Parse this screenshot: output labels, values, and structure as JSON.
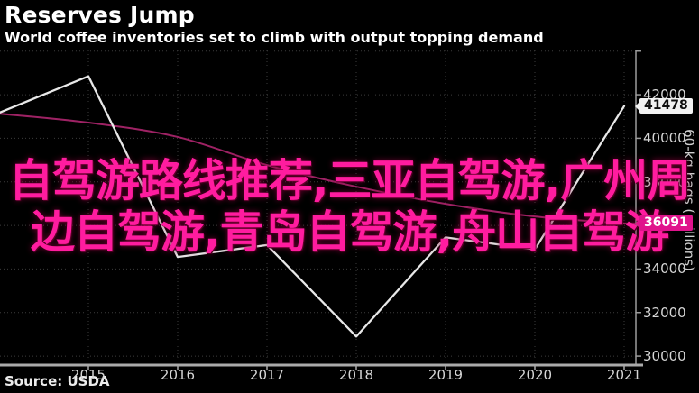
{
  "header": {
    "title": "Reserves Jump",
    "subtitle": "World coffee inventories set to climb with output topping demand"
  },
  "source": {
    "label": "Source: USDA"
  },
  "watermark": {
    "line1": "自驾游路线推荐,三亚自驾游,广州周",
    "line2": "边自驾游,青岛自驾游,舟山自驾游",
    "color": "#ff1c9f"
  },
  "chart_data": {
    "type": "line",
    "title": "Reserves Jump",
    "subtitle": "World coffee inventories set to climb with output topping demand",
    "ylabel": "60-kg bags (millions)",
    "x": [
      2014,
      2015,
      2016,
      2017,
      2018,
      2019,
      2020,
      2021
    ],
    "xticks": [
      2015,
      2016,
      2017,
      2018,
      2019,
      2020,
      2021
    ],
    "yticks": [
      30000,
      32000,
      34000,
      36000,
      38000,
      40000,
      42000
    ],
    "ygrid": [
      30000,
      32000,
      34000,
      36000,
      38000,
      40000,
      42000,
      44000
    ],
    "ylim": [
      29590,
      44030
    ],
    "grid": true,
    "legend": false,
    "series": [
      {
        "name": "inventories-line",
        "color": "#e8e8e8",
        "smooth": false,
        "values": [
          41170,
          42850,
          34550,
          35100,
          30900,
          35450,
          34900,
          41478
        ],
        "end_label": "41478"
      },
      {
        "name": "secondary-line",
        "color": "#9e2264",
        "smooth": true,
        "values": [
          41130,
          40720,
          40060,
          38770,
          37780,
          36990,
          36410,
          36091
        ],
        "end_label": "36091"
      }
    ]
  },
  "colors": {
    "background": "#000000",
    "grid": "#3c3c3c",
    "axis": "#9c9c9c",
    "bottom_axis": "#aaaaaa",
    "tick_label": "#d6d6d6",
    "title": "#ffffff",
    "watermark": "#ff1c9f",
    "end_label_light_bg": "#f2f2f2",
    "end_label_magenta_bg": "#e0138c"
  }
}
